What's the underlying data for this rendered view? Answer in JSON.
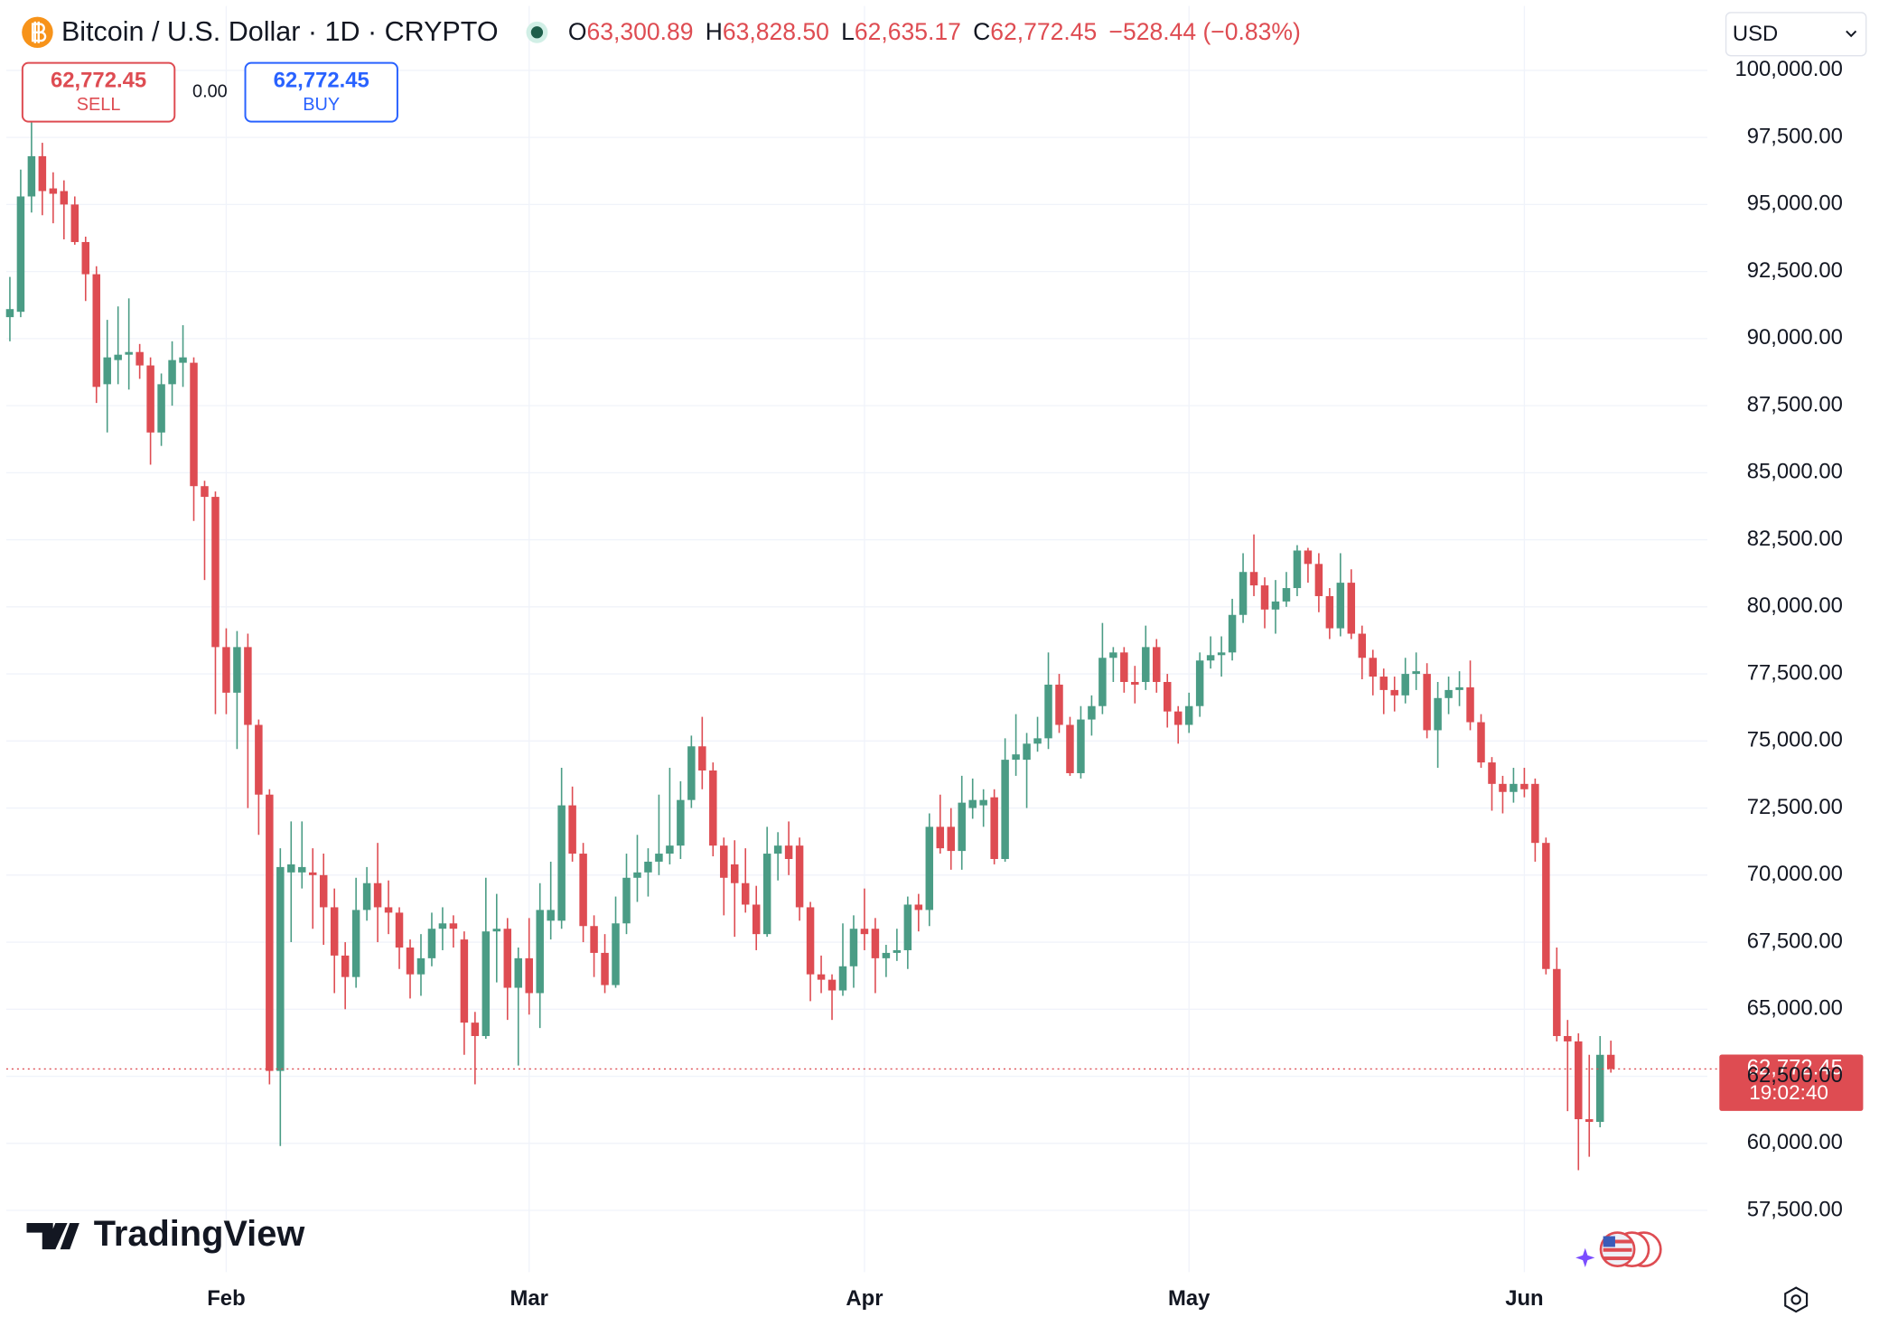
{
  "header": {
    "symbol": "Bitcoin / U.S. Dollar · 1D · CRYPTO",
    "ohlc": [
      {
        "key": "O",
        "value": "63,300.89"
      },
      {
        "key": "H",
        "value": "63,828.50"
      },
      {
        "key": "L",
        "value": "62,635.17"
      },
      {
        "key": "C",
        "value": "62,772.45"
      }
    ],
    "change": "−528.44 (−0.83%)"
  },
  "trade": {
    "sell_price": "62,772.45",
    "sell": "SELL",
    "spread": "0.00",
    "buy_price": "62,772.45",
    "buy": "BUY"
  },
  "currency": "USD",
  "last_price": {
    "price": "62,772.45",
    "countdown": "19:02:40"
  },
  "brand": "TradingView",
  "chart_data": {
    "type": "candlestick",
    "up_color": "#4a9c85",
    "down_color": "#de4c52",
    "categories": [
      null,
      null,
      null,
      null,
      null,
      null,
      null,
      null,
      null,
      null,
      null,
      null,
      null,
      null,
      null,
      null,
      null,
      null,
      null,
      null,
      "Feb",
      null,
      null,
      null,
      null,
      null,
      null,
      null,
      null,
      null,
      null,
      null,
      null,
      null,
      null,
      null,
      null,
      null,
      null,
      null,
      null,
      null,
      null,
      null,
      null,
      null,
      null,
      null,
      "Mar",
      null,
      null,
      null,
      null,
      null,
      null,
      null,
      null,
      null,
      null,
      null,
      null,
      null,
      null,
      null,
      null,
      null,
      null,
      null,
      null,
      null,
      null,
      null,
      null,
      null,
      null,
      null,
      null,
      null,
      null,
      "Apr",
      null,
      null,
      null,
      null,
      null,
      null,
      null,
      null,
      null,
      null,
      null,
      null,
      null,
      null,
      null,
      null,
      null,
      null,
      null,
      null,
      null,
      null,
      null,
      null,
      null,
      null,
      null,
      null,
      null,
      "May",
      null,
      null,
      null,
      null,
      null,
      null,
      null,
      null,
      null,
      null,
      null,
      null,
      null,
      null,
      null,
      null,
      null,
      null,
      null,
      null,
      null,
      null,
      null,
      null,
      null,
      null,
      null,
      null,
      null,
      null,
      "Jun",
      null,
      null,
      null,
      null,
      null,
      null,
      null,
      null
    ],
    "open": [
      90800,
      91000,
      95300,
      96800,
      95600,
      95500,
      95000,
      93600,
      92400,
      88300,
      89200,
      89400,
      89500,
      89000,
      86500,
      88300,
      89100,
      89100,
      84500,
      84100,
      78500,
      76800,
      78500,
      75600,
      73000,
      62700,
      70100,
      70100,
      70100,
      70000,
      68800,
      67000,
      66200,
      68700,
      69700,
      68800,
      68600,
      67300,
      66300,
      66900,
      68000,
      68200,
      67600,
      64500,
      64000,
      67900,
      68000,
      65800,
      66900,
      65600,
      68300,
      68300,
      72600,
      70800,
      68100,
      67100,
      65900,
      68200,
      69900,
      70100,
      70500,
      70800,
      71100,
      72800,
      74800,
      73900,
      71100,
      70400,
      69700,
      68900,
      67800,
      70800,
      71100,
      71100,
      68800,
      66300,
      66100,
      65700,
      66600,
      68000,
      68000,
      66900,
      67100,
      67200,
      68900,
      68700,
      71800,
      71800,
      70900,
      72500,
      72600,
      72900,
      70600,
      74300,
      74300,
      74900,
      75100,
      77100,
      75600,
      73800,
      75800,
      76300,
      78100,
      78300,
      77200,
      77200,
      78500,
      77200,
      76100,
      75600,
      76300,
      78000,
      78200,
      78300,
      79700,
      81300,
      80800,
      79900,
      80200,
      80700,
      82100,
      81600,
      80400,
      79200,
      80900,
      79000,
      78100,
      77400,
      76900,
      76700,
      77500,
      77500,
      75400,
      76600,
      76900,
      77000,
      75700,
      74200,
      73400,
      73100,
      73400,
      73400,
      71200,
      66500,
      64000,
      63800,
      60900,
      60800,
      63300.89
    ],
    "high": [
      92300,
      96300,
      98100,
      97300,
      96200,
      95900,
      95300,
      93800,
      92700,
      90700,
      91200,
      91500,
      89800,
      89300,
      88700,
      89900,
      90500,
      89300,
      84700,
      84300,
      79200,
      79100,
      79000,
      75800,
      73200,
      71000,
      72000,
      72000,
      71000,
      70800,
      69500,
      67500,
      69900,
      70300,
      71200,
      69800,
      68800,
      67600,
      67800,
      68600,
      68800,
      68500,
      67900,
      64900,
      69900,
      69300,
      68400,
      67300,
      68400,
      69700,
      70500,
      74000,
      73300,
      71200,
      68500,
      67800,
      69200,
      70800,
      71500,
      71000,
      73000,
      74000,
      73500,
      75200,
      75900,
      74200,
      71400,
      71300,
      71000,
      69600,
      71800,
      71600,
      72000,
      71400,
      69000,
      67000,
      66300,
      68200,
      68500,
      69500,
      68400,
      67400,
      68000,
      69200,
      69300,
      72300,
      73000,
      72500,
      73700,
      73600,
      73200,
      73200,
      75100,
      76000,
      75300,
      75900,
      78300,
      77500,
      75900,
      76300,
      76700,
      79400,
      78500,
      78500,
      77800,
      79300,
      78800,
      77500,
      76300,
      76800,
      78300,
      78900,
      78900,
      80300,
      82000,
      82700,
      81100,
      81000,
      81300,
      82300,
      82200,
      82000,
      80700,
      82000,
      81400,
      79300,
      78400,
      77700,
      77400,
      78100,
      78300,
      77900,
      77200,
      77400,
      77600,
      78000,
      76000,
      74400,
      73700,
      74000,
      74000,
      73600,
      71400,
      67300,
      64600,
      64100,
      63300,
      64000,
      63828.5
    ],
    "low": [
      89900,
      90800,
      94700,
      94600,
      94300,
      93700,
      93500,
      91400,
      87600,
      86500,
      88300,
      88100,
      88500,
      85300,
      86000,
      87500,
      88200,
      83200,
      81000,
      76000,
      76000,
      74700,
      72500,
      71500,
      62200,
      59900,
      67500,
      69500,
      68000,
      67400,
      65600,
      65000,
      65800,
      68300,
      67500,
      67800,
      66500,
      65400,
      65500,
      66600,
      67200,
      67300,
      63300,
      62200,
      63900,
      66000,
      64600,
      62900,
      64800,
      64300,
      67600,
      68000,
      70500,
      67500,
      66200,
      65600,
      65800,
      67800,
      69000,
      69200,
      70000,
      70400,
      70600,
      72500,
      73200,
      70700,
      68500,
      67700,
      68600,
      67200,
      67700,
      69800,
      70000,
      68300,
      65300,
      65600,
      64600,
      65500,
      65800,
      67200,
      65600,
      66200,
      66800,
      66500,
      67900,
      68100,
      70800,
      70200,
      70200,
      72100,
      71800,
      70400,
      70500,
      73700,
      72500,
      74600,
      74700,
      75300,
      73700,
      73600,
      75200,
      76000,
      77200,
      76800,
      76400,
      76900,
      76800,
      75500,
      74900,
      75300,
      75900,
      77700,
      77400,
      78000,
      79400,
      80400,
      79200,
      79000,
      80000,
      80400,
      80900,
      79800,
      78800,
      78900,
      78800,
      77300,
      76700,
      76000,
      76100,
      76400,
      76900,
      75100,
      74000,
      76000,
      76300,
      75400,
      74000,
      72400,
      72300,
      72700,
      72900,
      70500,
      66300,
      63800,
      61200,
      59000,
      59500,
      60600,
      62635.17
    ],
    "close": [
      91100,
      95300,
      96800,
      95500,
      95400,
      95000,
      93600,
      92400,
      88200,
      89300,
      89400,
      89500,
      89000,
      86500,
      88300,
      89200,
      89300,
      84500,
      84100,
      78500,
      76800,
      78500,
      75600,
      73000,
      62700,
      70300,
      70400,
      70300,
      70000,
      68800,
      67000,
      66200,
      68700,
      69700,
      68800,
      68600,
      67300,
      66300,
      66900,
      68000,
      68200,
      68000,
      64500,
      64000,
      67900,
      68000,
      65800,
      66900,
      65600,
      68700,
      68700,
      72600,
      70800,
      68100,
      67100,
      65900,
      68200,
      69900,
      70100,
      70500,
      70800,
      71100,
      72800,
      74800,
      73900,
      71100,
      69900,
      69700,
      68900,
      67800,
      70800,
      71100,
      70600,
      68800,
      66300,
      66100,
      65700,
      66600,
      68000,
      67800,
      66900,
      67100,
      67200,
      68900,
      68700,
      71800,
      71000,
      70900,
      72700,
      72800,
      72800,
      70600,
      74300,
      74500,
      74900,
      75100,
      77100,
      75600,
      73800,
      75800,
      76300,
      78100,
      78300,
      77200,
      77100,
      78500,
      77200,
      76100,
      75600,
      76300,
      78000,
      78200,
      78300,
      79700,
      81300,
      80800,
      79900,
      80200,
      80700,
      82100,
      81600,
      80400,
      79200,
      80900,
      79000,
      78100,
      77400,
      76900,
      76700,
      77500,
      77600,
      75400,
      76600,
      76900,
      77000,
      75700,
      74200,
      73400,
      73100,
      73400,
      73200,
      71200,
      66500,
      64000,
      63800,
      60900,
      60800,
      63300,
      62772.45
    ],
    "ylim": [
      55200,
      102400
    ],
    "yticks": [
      {
        "value": 57500,
        "label": "57,500.00"
      },
      {
        "value": 60000,
        "label": "60,000.00"
      },
      {
        "value": 62500,
        "label": "62,500.00"
      },
      {
        "value": 65000,
        "label": "65,000.00"
      },
      {
        "value": 67500,
        "label": "67,500.00"
      },
      {
        "value": 70000,
        "label": "70,000.00"
      },
      {
        "value": 72500,
        "label": "72,500.00"
      },
      {
        "value": 75000,
        "label": "75,000.00"
      },
      {
        "value": 77500,
        "label": "77,500.00"
      },
      {
        "value": 80000,
        "label": "80,000.00"
      },
      {
        "value": 82500,
        "label": "82,500.00"
      },
      {
        "value": 85000,
        "label": "85,000.00"
      },
      {
        "value": 87500,
        "label": "87,500.00"
      },
      {
        "value": 90000,
        "label": "90,000.00"
      },
      {
        "value": 92500,
        "label": "92,500.00"
      },
      {
        "value": 95000,
        "label": "95,000.00"
      },
      {
        "value": 97500,
        "label": "97,500.00"
      },
      {
        "value": 100000,
        "label": "100,000.00"
      }
    ],
    "grid": true
  }
}
